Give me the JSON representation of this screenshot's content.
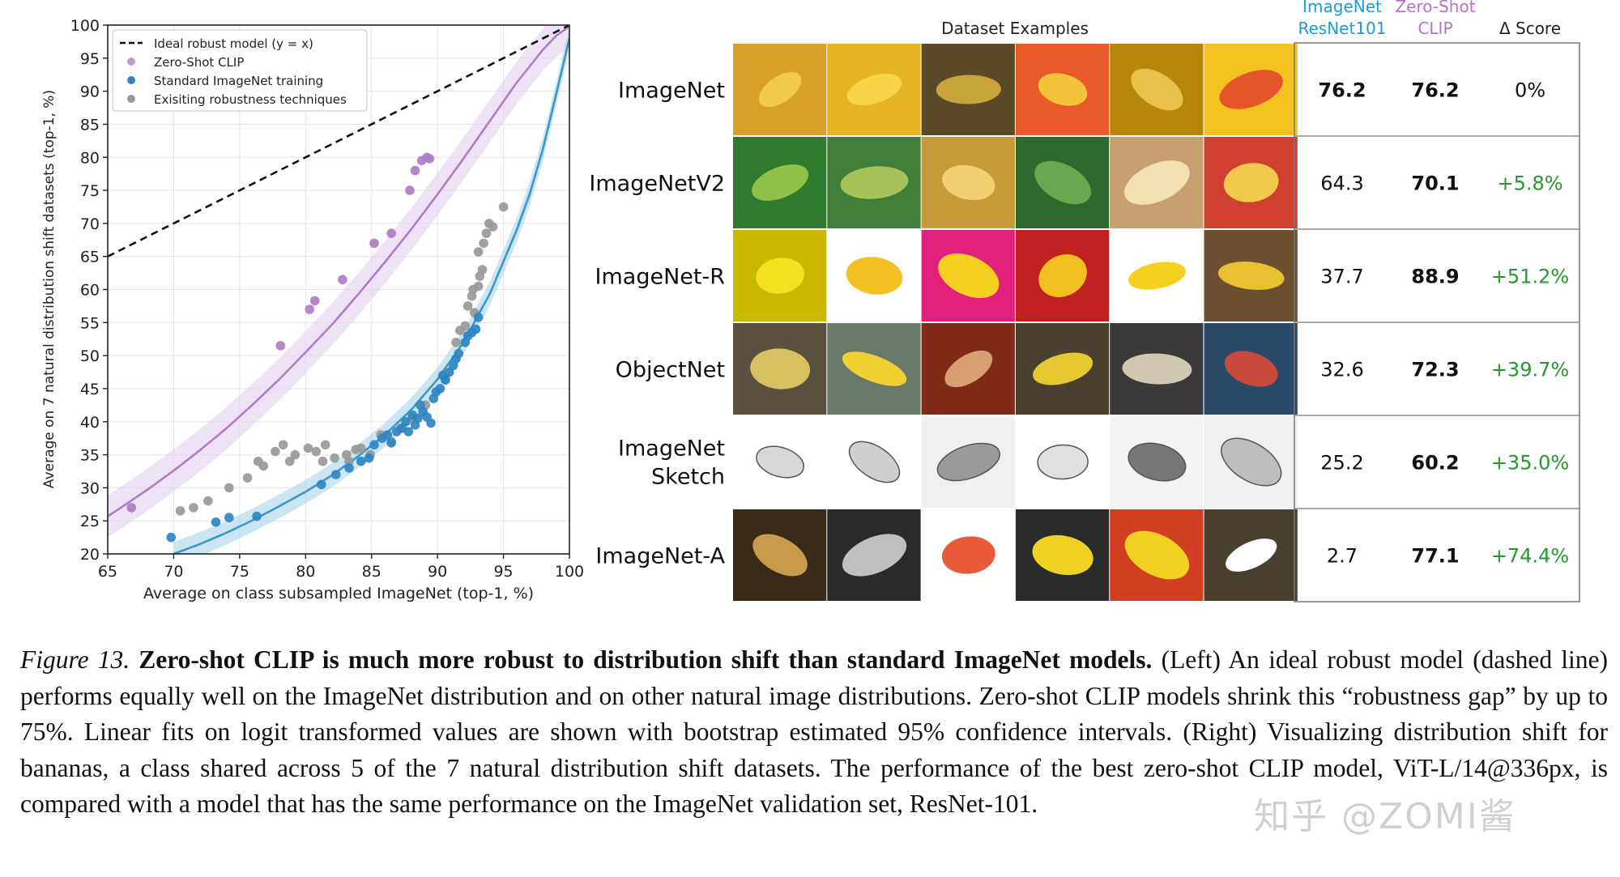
{
  "chart_data": {
    "type": "scatter",
    "title": "",
    "xlabel": "Average on class subsampled ImageNet (top-1, %)",
    "ylabel": "Average on 7 natural distribution shift datasets (top-1, %)",
    "xlim": [
      65,
      100
    ],
    "ylim": [
      20,
      100
    ],
    "xticks": [
      "65",
      "70",
      "75",
      "80",
      "85",
      "90",
      "95",
      "100"
    ],
    "yticks": [
      "20",
      "25",
      "30",
      "35",
      "40",
      "45",
      "50",
      "55",
      "60",
      "65",
      "70",
      "75",
      "80",
      "85",
      "90",
      "95",
      "100"
    ],
    "grid": true,
    "legend_position": "top-left",
    "legend": [
      {
        "label": "Ideal robust model (y = x)",
        "color": "#111111",
        "marker": "dashed-line"
      },
      {
        "label": "Zero-Shot CLIP",
        "color": "#c39bd3",
        "marker": "dot"
      },
      {
        "label": "Standard ImageNet training",
        "color": "#2e86c1",
        "marker": "dot"
      },
      {
        "label": "Exisiting robustness techniques",
        "color": "#999999",
        "marker": "dot"
      }
    ],
    "series": [
      {
        "name": "Zero-Shot CLIP",
        "color": "#b07cc6",
        "points": [
          [
            66.8,
            27
          ],
          [
            78.1,
            51.5
          ],
          [
            80.3,
            57
          ],
          [
            80.7,
            58.3
          ],
          [
            82.8,
            61.5
          ],
          [
            85.2,
            67
          ],
          [
            86.5,
            68.5
          ],
          [
            87.9,
            75
          ],
          [
            88.3,
            78
          ],
          [
            88.8,
            79.5
          ],
          [
            89.2,
            80
          ],
          [
            89.4,
            79.8
          ]
        ]
      },
      {
        "name": "Standard ImageNet training",
        "color": "#2e86c1",
        "points": [
          [
            69.8,
            22.5
          ],
          [
            73.2,
            24.8
          ],
          [
            74.2,
            25.5
          ],
          [
            76.3,
            25.7
          ],
          [
            81.2,
            30.5
          ],
          [
            82.3,
            32
          ],
          [
            83.3,
            33
          ],
          [
            84.2,
            34
          ],
          [
            84.8,
            34.5
          ],
          [
            85.2,
            36.5
          ],
          [
            85.8,
            37.5
          ],
          [
            86.2,
            38
          ],
          [
            86.5,
            36.8
          ],
          [
            86.9,
            38.5
          ],
          [
            87.3,
            39
          ],
          [
            87.6,
            40
          ],
          [
            87.8,
            38.5
          ],
          [
            88.1,
            41
          ],
          [
            88.3,
            39.5
          ],
          [
            88.5,
            40.5
          ],
          [
            88.7,
            42.5
          ],
          [
            88.9,
            41.5
          ],
          [
            89.2,
            40.7
          ],
          [
            89.5,
            39.8
          ],
          [
            89.7,
            43.5
          ],
          [
            89.9,
            44.5
          ],
          [
            90.2,
            45
          ],
          [
            90.4,
            47
          ],
          [
            90.6,
            46.3
          ],
          [
            90.9,
            47.5
          ],
          [
            91.2,
            48.5
          ],
          [
            91.4,
            49.5
          ],
          [
            91.6,
            50.3
          ],
          [
            92.1,
            52
          ],
          [
            92.3,
            53
          ],
          [
            92.6,
            53.5
          ],
          [
            92.9,
            54
          ],
          [
            93.1,
            55.8
          ]
        ]
      },
      {
        "name": "Exisiting robustness techniques",
        "color": "#999999",
        "points": [
          [
            70.5,
            26.5
          ],
          [
            71.5,
            27
          ],
          [
            72.6,
            28
          ],
          [
            74.2,
            30
          ],
          [
            75.6,
            31.5
          ],
          [
            76.4,
            34
          ],
          [
            76.8,
            33.3
          ],
          [
            77.7,
            35.5
          ],
          [
            78.3,
            36.5
          ],
          [
            78.8,
            34
          ],
          [
            79.2,
            35
          ],
          [
            80.2,
            36
          ],
          [
            80.8,
            35.5
          ],
          [
            81.3,
            34
          ],
          [
            81.5,
            36.5
          ],
          [
            82.2,
            34.5
          ],
          [
            83.1,
            35
          ],
          [
            83.3,
            34
          ],
          [
            83.8,
            35.8
          ],
          [
            84.2,
            36
          ],
          [
            84.9,
            35
          ],
          [
            85.7,
            38
          ],
          [
            86.5,
            37
          ],
          [
            87.2,
            39
          ],
          [
            88.1,
            40.5
          ],
          [
            89.1,
            42.5
          ],
          [
            90.6,
            46.5
          ],
          [
            91.4,
            52
          ],
          [
            91.7,
            53.8
          ],
          [
            92.1,
            54.5
          ],
          [
            92.3,
            57.5
          ],
          [
            92.6,
            59
          ],
          [
            92.7,
            60
          ],
          [
            92.8,
            56.5
          ],
          [
            93.1,
            60.5
          ],
          [
            93.2,
            62
          ],
          [
            93.4,
            63
          ],
          [
            93.1,
            65.7
          ],
          [
            93.5,
            67
          ],
          [
            93.7,
            68.5
          ],
          [
            93.9,
            70
          ],
          [
            94.2,
            69.5
          ],
          [
            95,
            72.5
          ]
        ]
      }
    ],
    "fits": [
      {
        "name": "Zero-Shot CLIP",
        "color": "#b07cc6",
        "band_color": "#e3cfee",
        "points": [
          [
            65,
            25.7
          ],
          [
            66,
            27.0
          ],
          [
            68,
            29.7
          ],
          [
            70,
            32.6
          ],
          [
            72,
            35.7
          ],
          [
            74,
            39.0
          ],
          [
            76,
            42.6
          ],
          [
            78,
            46.4
          ],
          [
            80,
            50.5
          ],
          [
            82,
            54.7
          ],
          [
            84,
            59.3
          ],
          [
            86,
            64.1
          ],
          [
            88,
            69.1
          ],
          [
            90,
            74.4
          ],
          [
            92,
            79.9
          ],
          [
            94,
            85.6
          ],
          [
            96,
            91.3
          ],
          [
            98,
            96.3
          ],
          [
            99,
            98.4
          ],
          [
            100,
            99.8
          ]
        ]
      },
      {
        "name": "Standard ImageNet training",
        "color": "#3a97c9",
        "band_color": "#a9d4ea",
        "points": [
          [
            70,
            20.0
          ],
          [
            72,
            21.5
          ],
          [
            74,
            23.2
          ],
          [
            76,
            25.1
          ],
          [
            78,
            27.2
          ],
          [
            80,
            29.4
          ],
          [
            82,
            31.9
          ],
          [
            84,
            34.8
          ],
          [
            86,
            38.0
          ],
          [
            88,
            41.8
          ],
          [
            90,
            46.4
          ],
          [
            92,
            52.1
          ],
          [
            94,
            59.5
          ],
          [
            96,
            69.0
          ],
          [
            97,
            74.5
          ],
          [
            98,
            81.3
          ],
          [
            99,
            89.6
          ],
          [
            100,
            98.0
          ]
        ]
      }
    ],
    "ideal_line": [
      [
        65,
        65
      ],
      [
        100,
        100
      ]
    ]
  },
  "table": {
    "dataset_examples_label": "Dataset Examples",
    "col_resnet_line1": "ImageNet",
    "col_resnet_line2": "ResNet101",
    "col_clip_line1": "Zero-Shot",
    "col_clip_line2": "CLIP",
    "col_delta": "Δ Score",
    "colors": {
      "resnet": "#1a9ad6",
      "clip": "#b86fd4",
      "delta_pos": "#229a2a"
    },
    "rows": [
      {
        "name": "ImageNet",
        "name_line2": "",
        "resnet": "76.2",
        "clip": "76.2",
        "delta": "0%"
      },
      {
        "name": "ImageNetV2",
        "name_line2": "",
        "resnet": "64.3",
        "clip": "70.1",
        "delta": "+5.8%"
      },
      {
        "name": "ImageNet-R",
        "name_line2": "",
        "resnet": "37.7",
        "clip": "88.9",
        "delta": "+51.2%"
      },
      {
        "name": "ObjectNet",
        "name_line2": "",
        "resnet": "32.6",
        "clip": "72.3",
        "delta": "+39.7%"
      },
      {
        "name": "ImageNet",
        "name_line2": "Sketch",
        "resnet": "25.2",
        "clip": "60.2",
        "delta": "+35.0%"
      },
      {
        "name": "ImageNet-A",
        "name_line2": "",
        "resnet": "2.7",
        "clip": "77.1",
        "delta": "+74.4%"
      }
    ]
  },
  "caption": {
    "label": "Figure 13.",
    "title": "Zero-shot CLIP is much more robust to distribution shift than standard ImageNet models.",
    "body": "(Left) An ideal robust model (dashed line) performs equally well on the ImageNet distribution and on other natural image distributions. Zero-shot CLIP models shrink this “robustness gap” by up to 75%. Linear fits on logit transformed values are shown with bootstrap estimated 95% confidence intervals. (Right) Visualizing distribution shift for bananas, a class shared across 5 of the 7 natural distribution shift datasets. The performance of the best zero-shot CLIP model, ViT-L/14@336px, is compared with a model that has the same performance on the ImageNet validation set, ResNet-101."
  },
  "watermark": "知乎 @ZOMI酱"
}
